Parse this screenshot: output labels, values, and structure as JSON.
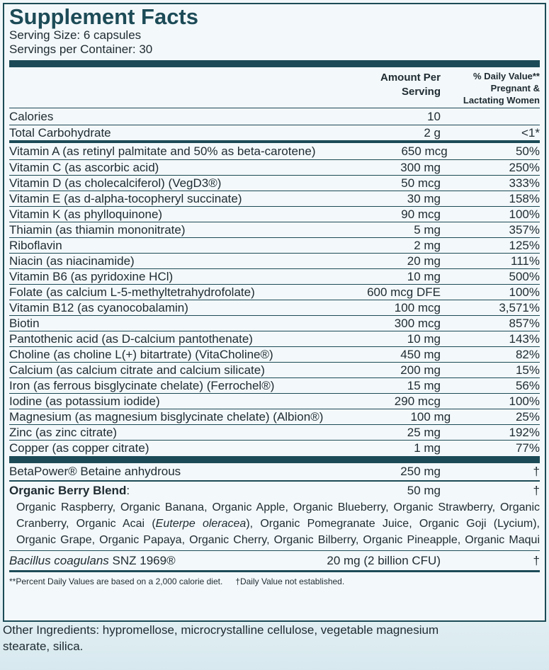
{
  "header": {
    "title": "Supplement Facts",
    "serving_size": "Serving Size: 6 capsules",
    "servings_per_container": "Servings per Container: 30"
  },
  "columns": {
    "amount": [
      "Amount Per",
      "Serving"
    ],
    "daily_value": [
      "% Daily Value**",
      "Pregnant &",
      "Lactating Women"
    ]
  },
  "sections": [
    [
      {
        "name": "Calories",
        "amount": "10",
        "dv": ""
      },
      {
        "name": "Total Carbohydrate",
        "amount": "2 g",
        "dv": "<1*"
      }
    ],
    [
      {
        "name": "Vitamin A (as retinyl palmitate and 50% as beta-carotene)",
        "amount": "650 mcg",
        "dv": "50%"
      },
      {
        "name": "Vitamin C (as ascorbic acid)",
        "amount": "300 mg",
        "dv": "250%"
      },
      {
        "name": "Vitamin D (as cholecalciferol) (VegD3®)",
        "amount": "50 mcg",
        "dv": "333%"
      },
      {
        "name": "Vitamin E (as d-alpha-tocopheryl succinate)",
        "amount": "30 mg",
        "dv": "158%"
      },
      {
        "name": "Vitamin K (as phylloquinone)",
        "amount": "90 mcg",
        "dv": "100%"
      },
      {
        "name": "Thiamin (as thiamin mononitrate)",
        "amount": "5 mg",
        "dv": "357%"
      },
      {
        "name": "Riboflavin",
        "amount": "2 mg",
        "dv": "125%"
      },
      {
        "name": "Niacin (as niacinamide)",
        "amount": "20 mg",
        "dv": "111%"
      },
      {
        "name": "Vitamin B6 (as pyridoxine HCl)",
        "amount": "10 mg",
        "dv": "500%"
      },
      {
        "name": "Folate (as calcium L-5-methyltetrahydrofolate)",
        "amount": "600 mcg DFE",
        "dv": "100%"
      },
      {
        "name": "Vitamin B12 (as cyanocobalamin)",
        "amount": "100 mcg",
        "dv": "3,571%"
      },
      {
        "name": "Biotin",
        "amount": "300 mcg",
        "dv": "857%"
      },
      {
        "name": "Pantothenic acid (as D-calcium pantothenate)",
        "amount": "10 mg",
        "dv": "143%"
      },
      {
        "name": "Choline (as choline L(+) bitartrate) (VitaCholine®)",
        "amount": "450 mg",
        "dv": "82%"
      },
      {
        "name": "Calcium (as calcium citrate and calcium silicate)",
        "amount": "200 mg",
        "dv": "15%"
      },
      {
        "name": "Iron (as ferrous bisglycinate chelate) (Ferrochel®)",
        "amount": "15 mg",
        "dv": "56%"
      },
      {
        "name": "Iodine (as potassium iodide)",
        "amount": "290 mcg",
        "dv": "100%"
      },
      {
        "name": "Magnesium (as magnesium bisglycinate chelate) (Albion®)",
        "amount": "100 mg",
        "dv": "25%"
      },
      {
        "name": "Zinc (as zinc citrate)",
        "amount": "25 mg",
        "dv": "192%"
      },
      {
        "name": "Copper (as copper citrate)",
        "amount": "1 mg",
        "dv": "77%"
      }
    ]
  ],
  "betapower": {
    "name": "BetaPower® Betaine anhydrous",
    "amount": "250 mg",
    "dv": "†"
  },
  "blend": {
    "name_parts": [
      {
        "text": "Organic Berry Blend",
        "bold": true
      },
      {
        "text": ":",
        "bold": false
      }
    ],
    "amount": "50 mg",
    "dv": "†",
    "lines": [
      [
        {
          "text": "Organic Raspberry, Organic Banana, Organic Apple, Organic Blueberry, Organic Strawberry, Organic",
          "italic": false
        }
      ],
      [
        {
          "text": "Cranberry, Organic Acai (",
          "italic": false
        },
        {
          "text": "Euterpe oleracea",
          "italic": true
        },
        {
          "text": "), Organic Pomegranate Juice, Organic Goji (Lycium),",
          "italic": false
        }
      ],
      [
        {
          "text": "Organic Grape, Organic Papaya, Organic Cherry, Organic Bilberry, Organic Pineapple, Organic Maqui",
          "italic": false
        }
      ]
    ]
  },
  "probiotic": {
    "name_parts": [
      {
        "text": "Bacillus coagulans",
        "italic": true
      },
      {
        "text": " SNZ 1969®",
        "italic": false
      }
    ],
    "amount": "20 mg (2 billion CFU)",
    "dv": "†"
  },
  "footnotes": [
    "**Percent Daily Values are based on a 2,000 calorie diet.",
    "†Daily Value not established."
  ],
  "other_ingredients": "Other Ingredients: hypromellose, microcrystalline cellulose, vegetable magnesium stearate, silica."
}
